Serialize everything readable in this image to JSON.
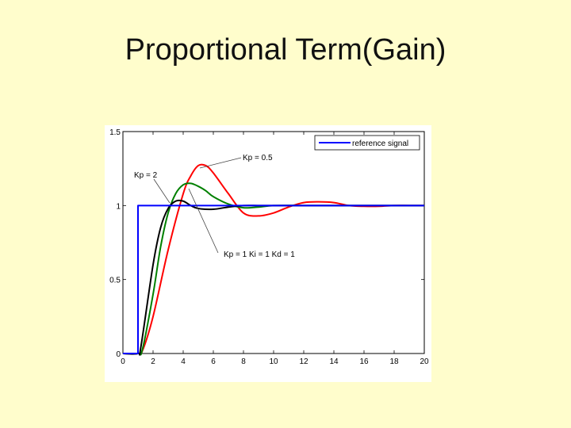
{
  "slide": {
    "title": "Proportional Term(Gain)"
  },
  "chart_data": {
    "type": "line",
    "xlim": [
      0,
      20
    ],
    "ylim": [
      0,
      1.5
    ],
    "x_ticks": [
      0,
      2,
      4,
      6,
      8,
      10,
      12,
      14,
      16,
      18,
      20
    ],
    "y_ticks": [
      0,
      0.5,
      1,
      1.5
    ],
    "x_tick_labels": [
      "0",
      "2",
      "4",
      "6",
      "8",
      "10",
      "12",
      "14",
      "16",
      "18",
      "20"
    ],
    "y_tick_labels": [
      "0",
      "0.5",
      "1",
      "1.5"
    ],
    "grid": false,
    "legend": {
      "entries": [
        "reference signal"
      ],
      "placement": "top-right"
    },
    "annotations": [
      "Kp = 0.5",
      "Kp = 2",
      "Kp = 1  Ki = 1  Kd = 1"
    ],
    "series": [
      {
        "name": "reference signal",
        "color": "#0000ff",
        "x": [
          0,
          1,
          1,
          20
        ],
        "y": [
          0,
          0,
          1,
          1
        ]
      },
      {
        "color": "#ff0000",
        "x": [
          0,
          1,
          1.3,
          2,
          3,
          4,
          4.5,
          5,
          5.5,
          6,
          7,
          8,
          9,
          10,
          11,
          12,
          13,
          14,
          15,
          16,
          17,
          18,
          19,
          20
        ],
        "y": [
          0,
          0,
          0.02,
          0.25,
          0.7,
          1.08,
          1.2,
          1.27,
          1.27,
          1.22,
          1.08,
          0.95,
          0.93,
          0.95,
          0.99,
          1.02,
          1.025,
          1.02,
          1.0,
          0.995,
          0.995,
          1.0,
          1.0,
          1.0
        ]
      },
      {
        "color": "#008000",
        "x": [
          0,
          1,
          1.3,
          2,
          2.5,
          3,
          3.5,
          4,
          4.5,
          5,
          5.5,
          6,
          7,
          8,
          9,
          10,
          12,
          14,
          16,
          18,
          20
        ],
        "y": [
          0,
          0,
          0.03,
          0.4,
          0.72,
          0.95,
          1.08,
          1.14,
          1.15,
          1.13,
          1.1,
          1.06,
          1.01,
          0.985,
          0.99,
          1.0,
          1.0,
          1.0,
          1.0,
          1.0,
          1.0
        ]
      },
      {
        "color": "#000000",
        "x": [
          0,
          1,
          1.2,
          2,
          2.5,
          3,
          3.5,
          4,
          4.5,
          5,
          6,
          7,
          8,
          9,
          10,
          12,
          14,
          16,
          18,
          20
        ],
        "y": [
          0,
          0,
          0.05,
          0.6,
          0.85,
          0.98,
          1.03,
          1.03,
          1.0,
          0.98,
          0.975,
          0.99,
          1.0,
          1.0,
          1.0,
          1.0,
          1.0,
          1.0,
          1.0,
          1.0
        ]
      }
    ]
  }
}
